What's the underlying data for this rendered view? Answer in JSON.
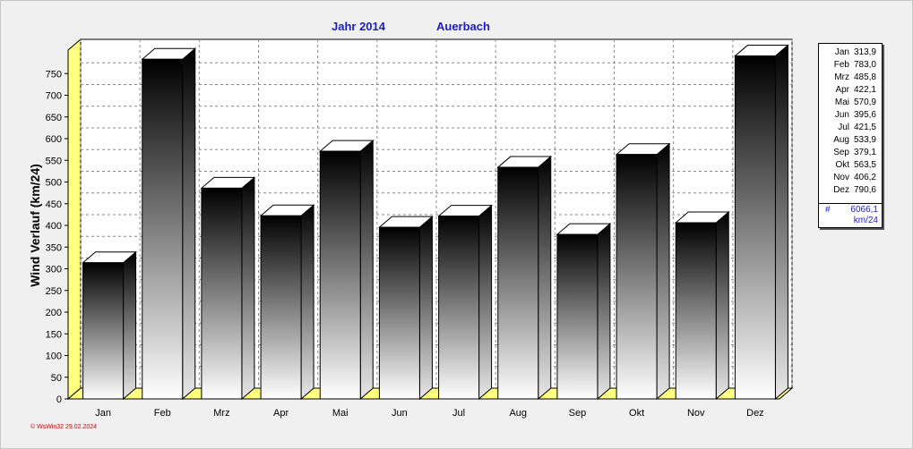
{
  "chart_data": {
    "type": "bar",
    "title": "Jahr  2014",
    "subtitle": "Auerbach",
    "ylabel": "Wind Verlauf  (km/24)",
    "xlabel": "",
    "ylim": [
      0,
      800
    ],
    "yticks": [
      0,
      50,
      100,
      150,
      200,
      250,
      300,
      350,
      400,
      450,
      500,
      550,
      600,
      650,
      700,
      750
    ],
    "grid": true,
    "categories": [
      "Jan",
      "Feb",
      "Mrz",
      "Apr",
      "Mai",
      "Jun",
      "Jul",
      "Aug",
      "Sep",
      "Okt",
      "Nov",
      "Dez"
    ],
    "values": [
      313.9,
      783.0,
      485.8,
      422.1,
      570.9,
      395.6,
      421.5,
      533.9,
      379.1,
      563.5,
      406.2,
      790.6
    ],
    "legend_placement": "right",
    "legend": {
      "rows": [
        {
          "month": "Jan",
          "value": "313,9"
        },
        {
          "month": "Feb",
          "value": "783,0"
        },
        {
          "month": "Mrz",
          "value": "485,8"
        },
        {
          "month": "Apr",
          "value": "422,1"
        },
        {
          "month": "Mai",
          "value": "570,9"
        },
        {
          "month": "Jun",
          "value": "395,6"
        },
        {
          "month": "Jul",
          "value": "421,5"
        },
        {
          "month": "Aug",
          "value": "533,9"
        },
        {
          "month": "Sep",
          "value": "379,1"
        },
        {
          "month": "Okt",
          "value": "563,5"
        },
        {
          "month": "Nov",
          "value": "406,2"
        },
        {
          "month": "Dez",
          "value": "790,6"
        }
      ],
      "total_symbol": "#",
      "total": "6066,1",
      "unit": "km/24"
    },
    "colors": {
      "title": "#1c1cbf",
      "floor_wall": "#ffff80",
      "bar_top": "#000000",
      "bar_bottom": "#ffffff",
      "footer": "#cc0000"
    }
  },
  "footer": "© WsWin32  29.02.2024"
}
